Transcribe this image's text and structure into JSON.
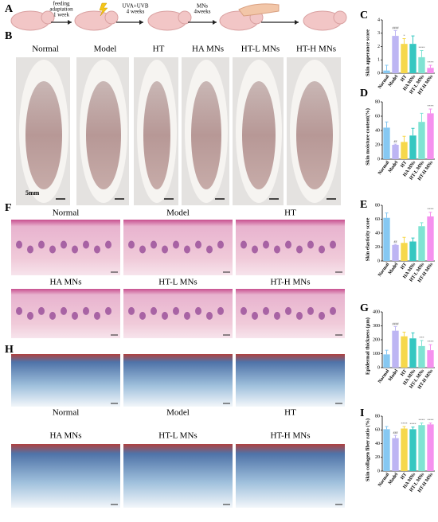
{
  "panel_labels": [
    "A",
    "B",
    "C",
    "D",
    "E",
    "F",
    "G",
    "H",
    "I"
  ],
  "panel_a": {
    "steps": [
      [
        "feeding",
        "adaptation",
        "1 week"
      ],
      [
        "UVA+UVB",
        "4 weeks"
      ],
      [
        "MNs",
        "4weeks"
      ]
    ]
  },
  "panel_b": {
    "groups": [
      "Normal",
      "Model",
      "HT",
      "HA MNs",
      "HT-L MNs",
      "HT-H MNs"
    ],
    "scale_bar": "5mm"
  },
  "panel_f": {
    "groups": [
      "Normal",
      "Model",
      "HT",
      "HA MNs",
      "HT-L MNs",
      "HT-H MNs"
    ]
  },
  "panel_h": {
    "groups": [
      "Normal",
      "Model",
      "HT",
      "HA MNs",
      "HT-L MNs",
      "HT-H MNs"
    ]
  },
  "chart_data": [
    {
      "type": "bar",
      "ylabel": "Skin apperance score",
      "categories": [
        "Normal",
        "Model",
        "HT",
        "HA MNs",
        "HT-L MNs",
        "HT-H MNs"
      ],
      "values": [
        0.2,
        2.8,
        2.2,
        2.2,
        1.2,
        0.4
      ],
      "errors": [
        0.4,
        0.4,
        0.4,
        0.6,
        0.5,
        0.2
      ],
      "annotations": [
        null,
        "####",
        "*",
        null,
        "****",
        "****"
      ],
      "colors": [
        "#86c8f2",
        "#bdb5f3",
        "#f6d84c",
        "#35c7c1",
        "#7fe3d3",
        "#f590ee"
      ],
      "ylim": [
        0,
        4
      ],
      "yticks": [
        0,
        1,
        2,
        3,
        4
      ]
    },
    {
      "type": "bar",
      "ylabel": "Skin moisture content(%)",
      "categories": [
        "Normal",
        "Model",
        "HT",
        "HA MNs",
        "HT-L MNs",
        "HT-H MNs"
      ],
      "values": [
        44,
        20,
        24,
        33,
        52,
        64
      ],
      "errors": [
        8,
        1,
        8,
        10,
        12,
        6
      ],
      "annotations": [
        null,
        "##",
        null,
        null,
        null,
        "****"
      ],
      "colors": [
        "#86c8f2",
        "#bdb5f3",
        "#f6d84c",
        "#35c7c1",
        "#7fe3d3",
        "#f590ee"
      ],
      "ylim": [
        0,
        80
      ],
      "yticks": [
        0,
        20,
        40,
        60,
        80
      ]
    },
    {
      "type": "bar",
      "ylabel": "Skin elasticity score",
      "categories": [
        "Normal",
        "Model",
        "HT",
        "HA MNs",
        "HT-L MNs",
        "HT-H MNs"
      ],
      "values": [
        62,
        23,
        26,
        28,
        50,
        64
      ],
      "errors": [
        7,
        1,
        8,
        5,
        5,
        6
      ],
      "annotations": [
        null,
        "##",
        null,
        null,
        null,
        "****"
      ],
      "colors": [
        "#86c8f2",
        "#bdb5f3",
        "#f6d84c",
        "#35c7c1",
        "#7fe3d3",
        "#f590ee"
      ],
      "ylim": [
        0,
        80
      ],
      "yticks": [
        0,
        20,
        40,
        60,
        80
      ]
    },
    {
      "type": "bar",
      "ylabel": "Epidermal thickness (μm)",
      "categories": [
        "Normal",
        "Model",
        "HT",
        "HA MNs",
        "HT-L MNs",
        "HT-H MNs"
      ],
      "values": [
        95,
        265,
        225,
        210,
        155,
        125
      ],
      "errors": [
        30,
        30,
        30,
        40,
        40,
        40
      ],
      "annotations": [
        null,
        "####",
        null,
        null,
        "***",
        "****"
      ],
      "colors": [
        "#86c8f2",
        "#bdb5f3",
        "#f6d84c",
        "#35c7c1",
        "#7fe3d3",
        "#f590ee"
      ],
      "ylim": [
        0,
        400
      ],
      "yticks": [
        0,
        100,
        200,
        300,
        400
      ]
    },
    {
      "type": "bar",
      "ylabel": "Skin collagen fiber ratio (%)",
      "categories": [
        "Normal",
        "Model",
        "HT",
        "HA MNs",
        "HT-L MNs",
        "HT-H MNs"
      ],
      "values": [
        61,
        48,
        62,
        61,
        67,
        68
      ],
      "errors": [
        4,
        4,
        3,
        3,
        3,
        2
      ],
      "annotations": [
        null,
        "###",
        "****",
        "****",
        "****",
        "****"
      ],
      "colors": [
        "#86c8f2",
        "#bdb5f3",
        "#f6d84c",
        "#35c7c1",
        "#7fe3d3",
        "#f590ee"
      ],
      "ylim": [
        0,
        80
      ],
      "yticks": [
        0,
        20,
        40,
        60,
        80
      ]
    }
  ]
}
